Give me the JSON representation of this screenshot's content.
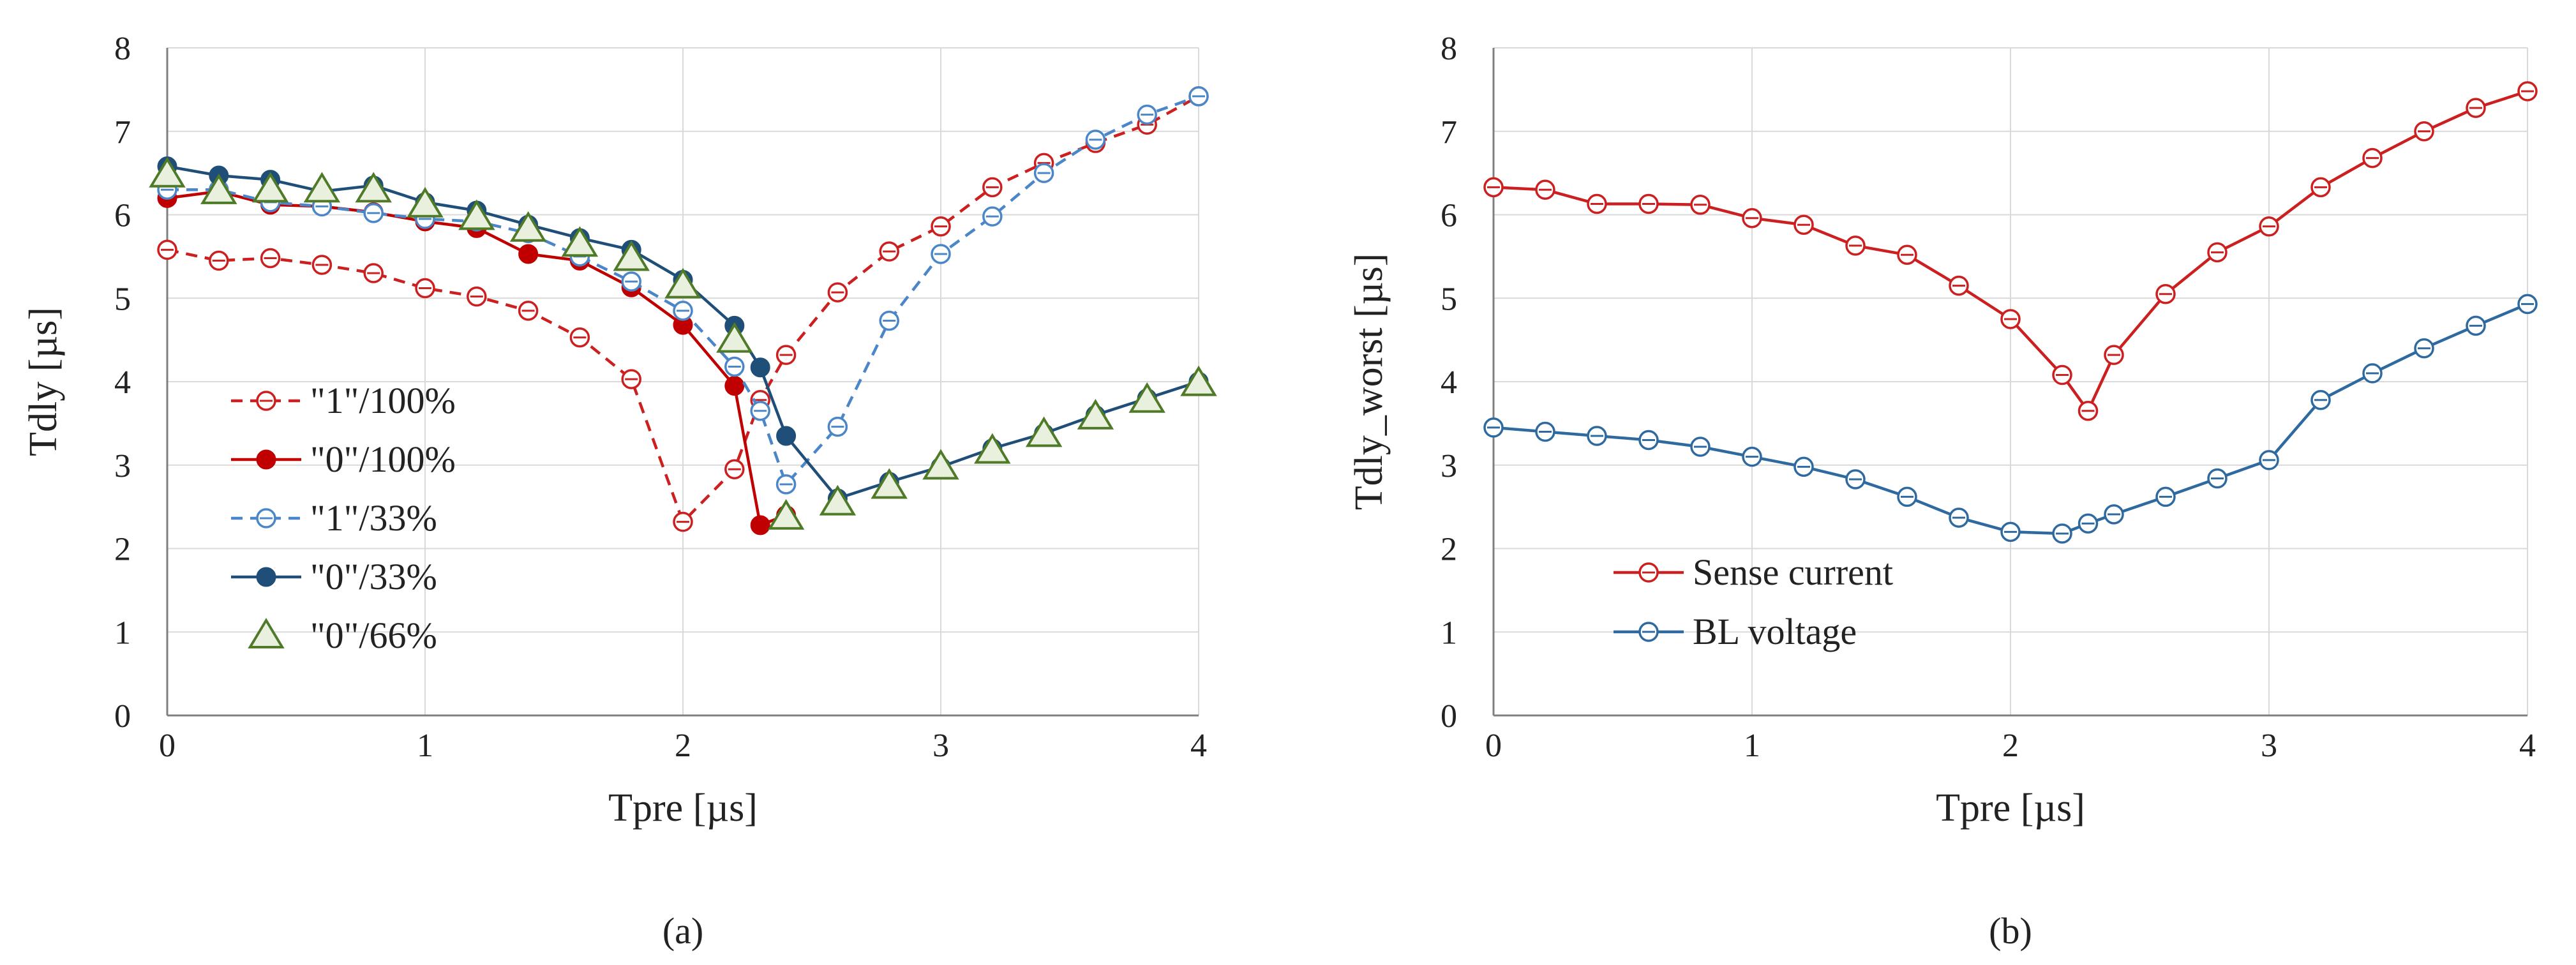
{
  "chart_data": [
    {
      "type": "line",
      "caption": "(a)",
      "xlabel": "Tpre [µs]",
      "ylabel": "Tdly [µs]",
      "xlim": [
        0,
        4
      ],
      "ylim": [
        0,
        8
      ],
      "xticks": [
        "0",
        "1",
        "2",
        "3",
        "4"
      ],
      "yticks": [
        "0",
        "1",
        "2",
        "3",
        "4",
        "5",
        "6",
        "7",
        "8"
      ],
      "grid": true,
      "legend_position": "lower-left",
      "series": [
        {
          "name": "\"1\"/100%",
          "color": "#cc1f1f",
          "dashed": true,
          "marker": "open-circle",
          "x": [
            0,
            0.2,
            0.4,
            0.6,
            0.8,
            1.0,
            1.2,
            1.4,
            1.6,
            1.8,
            2.0,
            2.2,
            2.3,
            2.4,
            2.6,
            2.8,
            3.0,
            3.2,
            3.4,
            3.6,
            3.8,
            4.0
          ],
          "y": [
            5.58,
            5.45,
            5.48,
            5.4,
            5.3,
            5.12,
            5.02,
            4.85,
            4.53,
            4.03,
            2.32,
            2.95,
            3.78,
            4.32,
            5.07,
            5.56,
            5.86,
            6.33,
            6.62,
            6.86,
            7.08,
            7.42
          ]
        },
        {
          "name": "\"0\"/100%",
          "color": "#c00000",
          "dashed": false,
          "marker": "filled-circle",
          "x": [
            0,
            0.2,
            0.4,
            0.6,
            0.8,
            1.0,
            1.2,
            1.4,
            1.6,
            1.8,
            2.0,
            2.2,
            2.3,
            2.4
          ],
          "y": [
            6.2,
            6.28,
            6.12,
            6.1,
            6.03,
            5.92,
            5.84,
            5.53,
            5.45,
            5.13,
            4.68,
            3.95,
            2.28,
            2.4
          ]
        },
        {
          "name": "\"1\"/33%",
          "color": "#4a86c8",
          "dashed": true,
          "marker": "open-circle",
          "x": [
            0,
            0.2,
            0.4,
            0.6,
            0.8,
            1.0,
            1.2,
            1.4,
            1.6,
            1.8,
            2.0,
            2.2,
            2.3,
            2.4,
            2.6,
            2.8,
            3.0,
            3.2,
            3.4,
            3.6,
            3.8,
            4.0
          ],
          "y": [
            6.3,
            6.3,
            6.15,
            6.1,
            6.02,
            5.95,
            5.92,
            5.78,
            5.5,
            5.2,
            4.85,
            4.18,
            3.65,
            2.77,
            3.46,
            4.73,
            5.53,
            5.98,
            6.5,
            6.9,
            7.2,
            7.42
          ]
        },
        {
          "name": "\"0\"/33%",
          "color": "#1f4e79",
          "dashed": false,
          "marker": "filled-circle",
          "x": [
            0,
            0.2,
            0.4,
            0.6,
            0.8,
            1.0,
            1.2,
            1.4,
            1.6,
            1.8,
            2.0,
            2.2,
            2.3,
            2.4,
            2.6,
            2.8,
            3.0,
            3.2,
            3.4,
            3.6,
            3.8,
            4.0
          ],
          "y": [
            6.58,
            6.47,
            6.42,
            6.28,
            6.35,
            6.15,
            6.05,
            5.88,
            5.72,
            5.58,
            5.22,
            4.67,
            4.17,
            3.35,
            2.6,
            2.8,
            2.98,
            3.2,
            3.38,
            3.6,
            3.8,
            4.0
          ]
        },
        {
          "name": "\"0\"/66%",
          "color": "#4f7a28",
          "dashed": false,
          "line": false,
          "marker": "open-triangle",
          "x": [
            0,
            0.2,
            0.4,
            0.6,
            0.8,
            1.0,
            1.2,
            1.4,
            1.6,
            1.8,
            2.0,
            2.2,
            2.4,
            2.6,
            2.8,
            3.0,
            3.2,
            3.4,
            3.6,
            3.8,
            4.0
          ],
          "y": [
            6.48,
            6.28,
            6.3,
            6.3,
            6.3,
            6.12,
            5.97,
            5.83,
            5.65,
            5.48,
            5.15,
            4.5,
            2.38,
            2.55,
            2.75,
            2.98,
            3.17,
            3.37,
            3.58,
            3.78,
            3.98
          ]
        }
      ]
    },
    {
      "type": "line",
      "caption": "(b)",
      "xlabel": "Tpre [µs]",
      "ylabel": "Tdly_worst [µs]",
      "xlim": [
        0,
        4
      ],
      "ylim": [
        0,
        8
      ],
      "xticks": [
        "0",
        "1",
        "2",
        "3",
        "4"
      ],
      "yticks": [
        "0",
        "1",
        "2",
        "3",
        "4",
        "5",
        "6",
        "7",
        "8"
      ],
      "grid": true,
      "legend_position": "lower-left",
      "series": [
        {
          "name": "Sense current",
          "color": "#cc1f1f",
          "dashed": false,
          "marker": "open-circle",
          "x": [
            0,
            0.2,
            0.4,
            0.6,
            0.8,
            1.0,
            1.2,
            1.4,
            1.6,
            1.8,
            2.0,
            2.2,
            2.3,
            2.4,
            2.6,
            2.8,
            3.0,
            3.2,
            3.4,
            3.6,
            3.8,
            4.0
          ],
          "y": [
            6.33,
            6.3,
            6.13,
            6.13,
            6.12,
            5.96,
            5.88,
            5.63,
            5.52,
            5.15,
            4.75,
            4.08,
            3.65,
            4.32,
            5.05,
            5.55,
            5.86,
            6.33,
            6.68,
            7.0,
            7.28,
            7.48
          ]
        },
        {
          "name": "BL voltage",
          "color": "#2e6aa0",
          "dashed": false,
          "marker": "open-circle",
          "x": [
            0,
            0.2,
            0.4,
            0.6,
            0.8,
            1.0,
            1.2,
            1.4,
            1.6,
            1.8,
            2.0,
            2.2,
            2.3,
            2.4,
            2.6,
            2.8,
            3.0,
            3.2,
            3.4,
            3.6,
            3.8,
            4.0
          ],
          "y": [
            3.45,
            3.4,
            3.35,
            3.3,
            3.22,
            3.1,
            2.98,
            2.83,
            2.62,
            2.37,
            2.2,
            2.18,
            2.3,
            2.41,
            2.62,
            2.84,
            3.06,
            3.78,
            4.1,
            4.4,
            4.67,
            4.93
          ]
        }
      ]
    }
  ]
}
